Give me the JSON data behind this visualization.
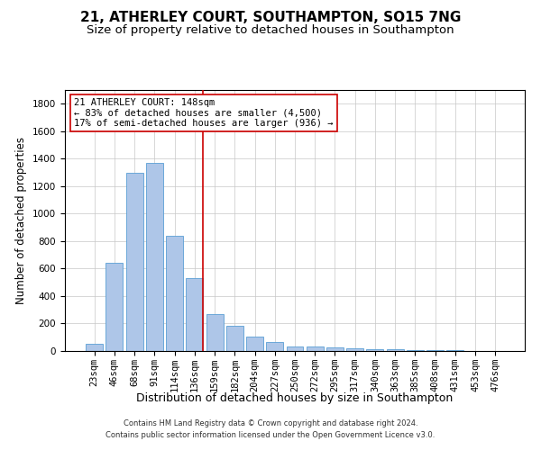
{
  "title": "21, ATHERLEY COURT, SOUTHAMPTON, SO15 7NG",
  "subtitle": "Size of property relative to detached houses in Southampton",
  "xlabel": "Distribution of detached houses by size in Southampton",
  "ylabel": "Number of detached properties",
  "categories": [
    "23sqm",
    "46sqm",
    "68sqm",
    "91sqm",
    "114sqm",
    "136sqm",
    "159sqm",
    "182sqm",
    "204sqm",
    "227sqm",
    "250sqm",
    "272sqm",
    "295sqm",
    "317sqm",
    "340sqm",
    "363sqm",
    "385sqm",
    "408sqm",
    "431sqm",
    "453sqm",
    "476sqm"
  ],
  "values": [
    50,
    640,
    1300,
    1370,
    840,
    530,
    270,
    185,
    105,
    65,
    30,
    30,
    25,
    20,
    15,
    10,
    5,
    5,
    5,
    2,
    2
  ],
  "bar_color": "#aec6e8",
  "bar_edge_color": "#5a9fd4",
  "vline_x_index": 5,
  "vline_color": "#cc0000",
  "annotation_text": "21 ATHERLEY COURT: 148sqm\n← 83% of detached houses are smaller (4,500)\n17% of semi-detached houses are larger (936) →",
  "annotation_box_color": "#ffffff",
  "annotation_box_edge": "#cc0000",
  "ylim": [
    0,
    1900
  ],
  "yticks": [
    0,
    200,
    400,
    600,
    800,
    1000,
    1200,
    1400,
    1600,
    1800
  ],
  "title_fontsize": 11,
  "subtitle_fontsize": 9.5,
  "xlabel_fontsize": 9,
  "ylabel_fontsize": 8.5,
  "tick_fontsize": 7.5,
  "annotation_fontsize": 7.5,
  "footer_line1": "Contains HM Land Registry data © Crown copyright and database right 2024.",
  "footer_line2": "Contains public sector information licensed under the Open Government Licence v3.0.",
  "background_color": "#ffffff",
  "grid_color": "#c8c8c8"
}
